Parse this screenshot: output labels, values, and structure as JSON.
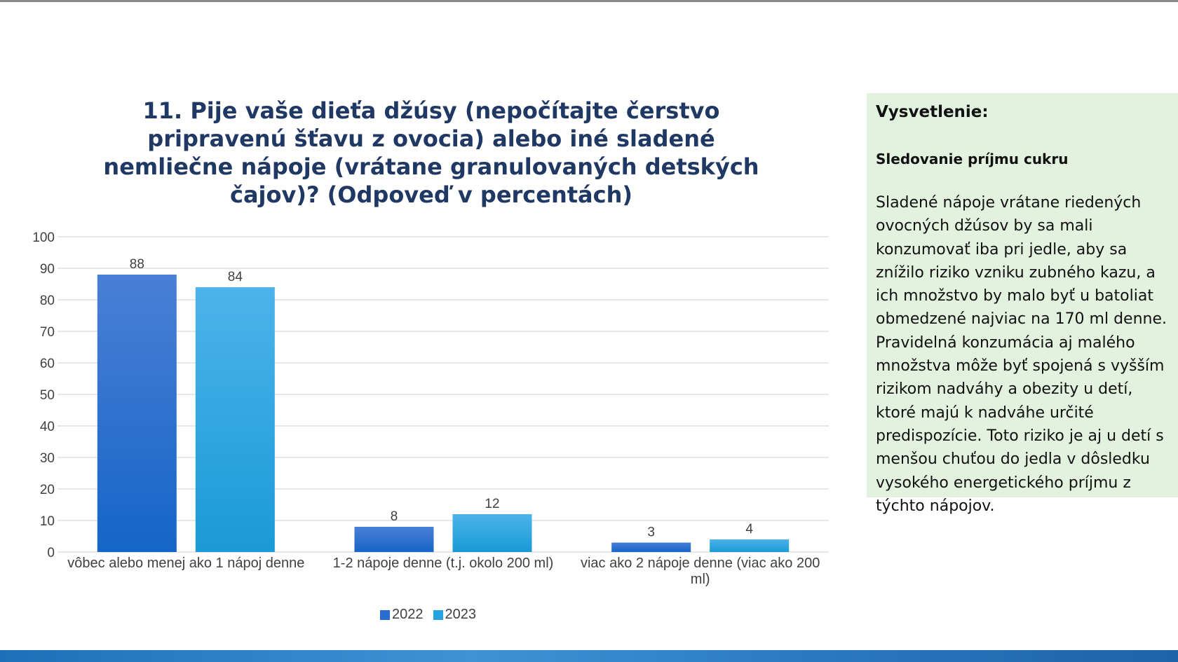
{
  "chart_data": {
    "type": "bar",
    "title": "11. Pije vaše dieťa džúsy (nepočítajte čerstvo pripravenú šťavu z ovocia) alebo iné sladené nemliečne nápoje (vrátane granulovaných detských čajov)? (Odpoveď v percentách)",
    "categories": [
      "vôbec alebo menej ako 1 nápoj denne",
      "1-2 nápoje denne (t.j. okolo 200 ml)",
      "viac ako 2 nápoje denne (viac ako 200 ml)"
    ],
    "category_lines": [
      [
        "vôbec alebo menej ako 1 nápoj denne"
      ],
      [
        "1-2 nápoje denne (t.j. okolo 200 ml)"
      ],
      [
        "viac ako 2 nápoje denne (viac ako 200",
        "ml)"
      ]
    ],
    "series": [
      {
        "name": "2022",
        "values": [
          88,
          8,
          3
        ]
      },
      {
        "name": "2023",
        "values": [
          84,
          12,
          4
        ]
      }
    ],
    "yticks": [
      0,
      10,
      20,
      30,
      40,
      50,
      60,
      70,
      80,
      90,
      100
    ],
    "ylim": [
      0,
      100
    ],
    "xlabel": "",
    "ylabel": "",
    "grid": true,
    "legend_position": "bottom"
  },
  "colors": {
    "series_2022_top": "#4a7fd6",
    "series_2022_bottom": "#1565c8",
    "series_2023_top": "#4db3ea",
    "series_2023_bottom": "#1a9ad6",
    "grid": "#d9d9d9",
    "title": "#1f3864",
    "panel_bg": "#e3f1df"
  },
  "legend": {
    "items": [
      {
        "label": "2022",
        "color": "#2a6cd0"
      },
      {
        "label": "2023",
        "color": "#27a4e0"
      }
    ]
  },
  "panel": {
    "title": "Vysvetlenie:",
    "subtitle": "Sledovanie príjmu cukru",
    "body": "Sladené nápoje vrátane riedených ovocných džúsov by sa mali konzumovať iba pri jedle, aby sa znížilo riziko vzniku zubného kazu, a ich množstvo by malo byť u batoliat obmedzené najviac na 170 ml denne. Pravidelná konzumácia aj malého množstva môže byť spojená s vyšším rizikom nadváhy a obezity u detí, ktoré majú k nadváhe určité predispozície. Toto riziko je aj u detí s menšou chuťou do jedla v dôsledku vysokého energetického príjmu z týchto nápojov."
  }
}
